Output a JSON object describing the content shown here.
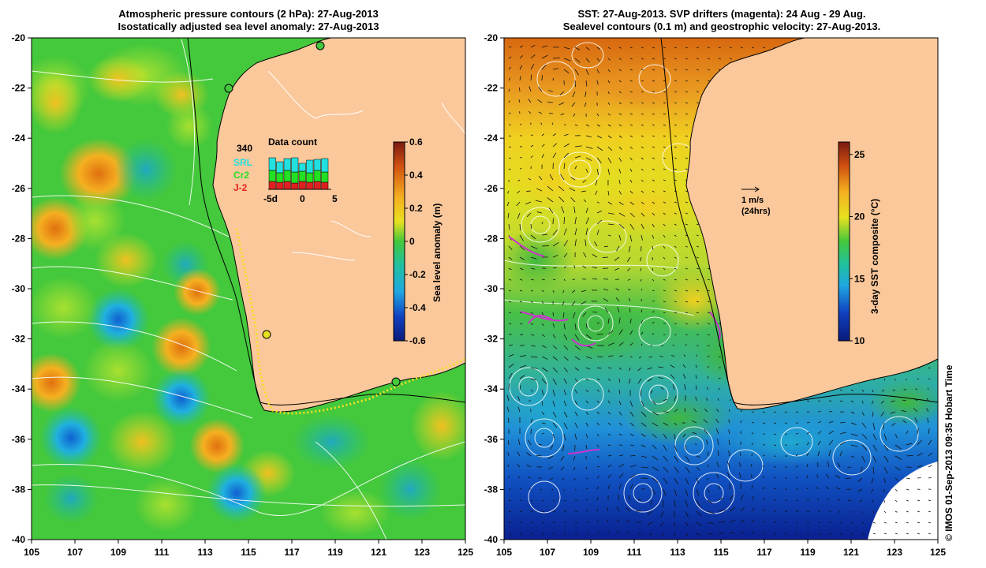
{
  "left": {
    "title_line1": "Atmospheric pressure contours (2 hPa): 27-Aug-2013",
    "title_line2": "Isostatically adjusted sea level anomaly: 27-Aug-2013",
    "y_ticks": [
      "-20",
      "-22",
      "-24",
      "-26",
      "-28",
      "-30",
      "-32",
      "-34",
      "-36",
      "-38",
      "-40"
    ],
    "x_ticks": [
      "105",
      "107",
      "109",
      "111",
      "113",
      "115",
      "117",
      "119",
      "121",
      "123",
      "125"
    ],
    "colorbar": {
      "label": "Sea level anomaly (m)",
      "ticks": [
        "0.6",
        "0.4",
        "0.2",
        "0",
        "-0.2",
        "-0.4",
        "-0.6"
      ],
      "min": -0.6,
      "max": 0.6
    },
    "inset": {
      "title": "Data count",
      "max_label": "340",
      "legend": [
        "SRL",
        "Cr2",
        "J-2"
      ],
      "legend_colors": [
        "#22e0e0",
        "#22e022",
        "#e02020"
      ],
      "x_ticks": [
        "-5d",
        "0",
        "5"
      ]
    }
  },
  "right": {
    "title_line1": "SST: 27-Aug-2013. SVP drifters (magenta): 24 Aug - 29 Aug.",
    "title_line2": "Sealevel contours (0.1 m) and geostrophic velocity: 27-Aug-2013.",
    "y_ticks": [
      "-20",
      "-22",
      "-24",
      "-26",
      "-28",
      "-30",
      "-32",
      "-34",
      "-36",
      "-38",
      "-40"
    ],
    "x_ticks": [
      "105",
      "107",
      "109",
      "111",
      "113",
      "115",
      "117",
      "119",
      "121",
      "123",
      "125"
    ],
    "colorbar": {
      "label": "3-day SST composite (°C)",
      "ticks": [
        "25",
        "20",
        "15",
        "10"
      ],
      "min": 10,
      "max": 26
    },
    "scale_label": "1 m/s",
    "scale_sub": "(24hrs)"
  },
  "credit": "© IMOS 01-Sep-2013 09:35 Hobart Time",
  "colors": {
    "land": "#fbc89b",
    "magenta": "#cc33cc"
  }
}
